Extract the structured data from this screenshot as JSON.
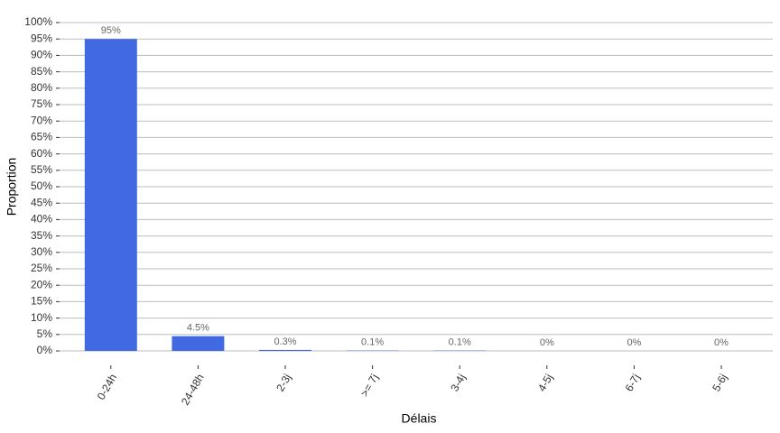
{
  "chart_data": {
    "type": "bar",
    "x_label": "Délais",
    "y_label": "Proportion",
    "categories": [
      "0-24h",
      "24-48h",
      "2-3j",
      ">= 7j",
      "3-4j",
      "4-5j",
      "6-7j",
      "5-6j"
    ],
    "values": [
      95,
      4.5,
      0.3,
      0.1,
      0.1,
      0,
      0,
      0
    ],
    "value_labels": [
      "95%",
      "4.5%",
      "0.3%",
      "0.1%",
      "0.1%",
      "0%",
      "0%",
      "0%"
    ],
    "color": "#4169e1",
    "ylim": [
      0,
      100
    ],
    "yticks": [
      {
        "value": 0,
        "label": "0%"
      },
      {
        "value": 5,
        "label": "5%"
      },
      {
        "value": 10,
        "label": "10%"
      },
      {
        "value": 15,
        "label": "15%"
      },
      {
        "value": 20,
        "label": "20%"
      },
      {
        "value": 25,
        "label": "25%"
      },
      {
        "value": 30,
        "label": "30%"
      },
      {
        "value": 35,
        "label": "35%"
      },
      {
        "value": 40,
        "label": "40%"
      },
      {
        "value": 45,
        "label": "45%"
      },
      {
        "value": 50,
        "label": "50%"
      },
      {
        "value": 55,
        "label": "55%"
      },
      {
        "value": 60,
        "label": "60%"
      },
      {
        "value": 65,
        "label": "65%"
      },
      {
        "value": 70,
        "label": "70%"
      },
      {
        "value": 75,
        "label": "75%"
      },
      {
        "value": 80,
        "label": "80%"
      },
      {
        "value": 85,
        "label": "85%"
      },
      {
        "value": 90,
        "label": "90%"
      },
      {
        "value": 95,
        "label": "95%"
      },
      {
        "value": 100,
        "label": "100%"
      }
    ],
    "grid": true
  }
}
